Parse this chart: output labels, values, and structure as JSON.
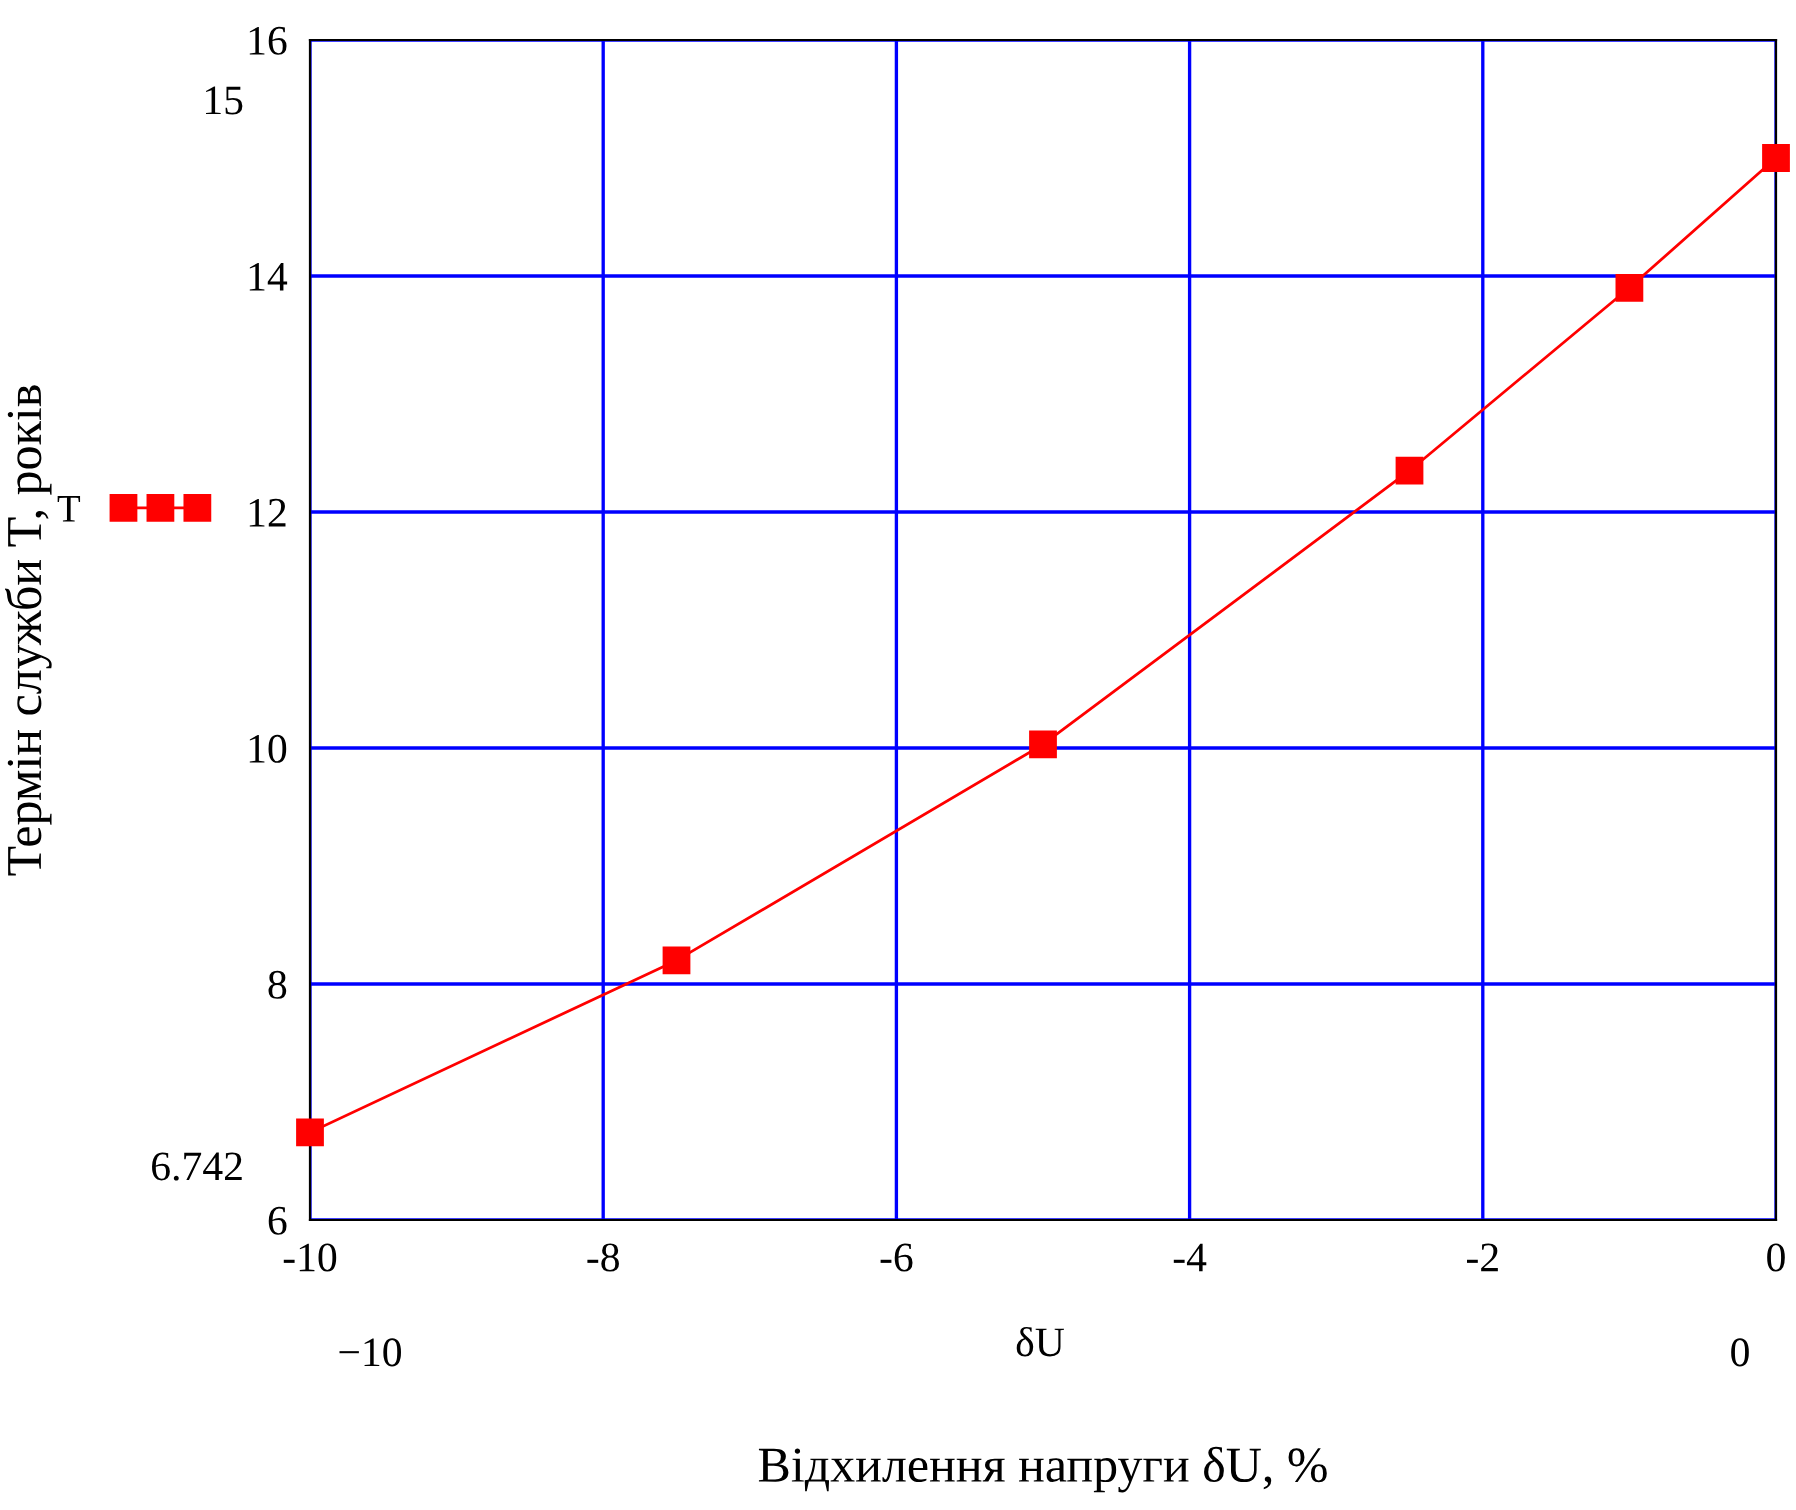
{
  "chart_data": {
    "type": "line",
    "xlabel": "Відхилення напруги δU, %",
    "ylabel": "Термін служби T, років",
    "x": [
      -10,
      -7.5,
      -5,
      -2.5,
      -1,
      0
    ],
    "series": [
      {
        "name": "T",
        "color": "#ff0000",
        "values": [
          6.742,
          8.2,
          10.03,
          12.35,
          13.9,
          15
        ]
      }
    ],
    "xlim": [
      -10,
      0
    ],
    "xticks": [
      -10,
      -8,
      -6,
      -4,
      -2,
      0
    ],
    "ylim": [
      6,
      16
    ],
    "yticks": [
      6,
      8,
      10,
      12,
      14,
      16
    ],
    "grid": true,
    "marker": "square",
    "line_style": "solid",
    "legend": "left",
    "annotations": [
      "15",
      "6.742",
      "−10",
      "δU",
      "0"
    ]
  }
}
